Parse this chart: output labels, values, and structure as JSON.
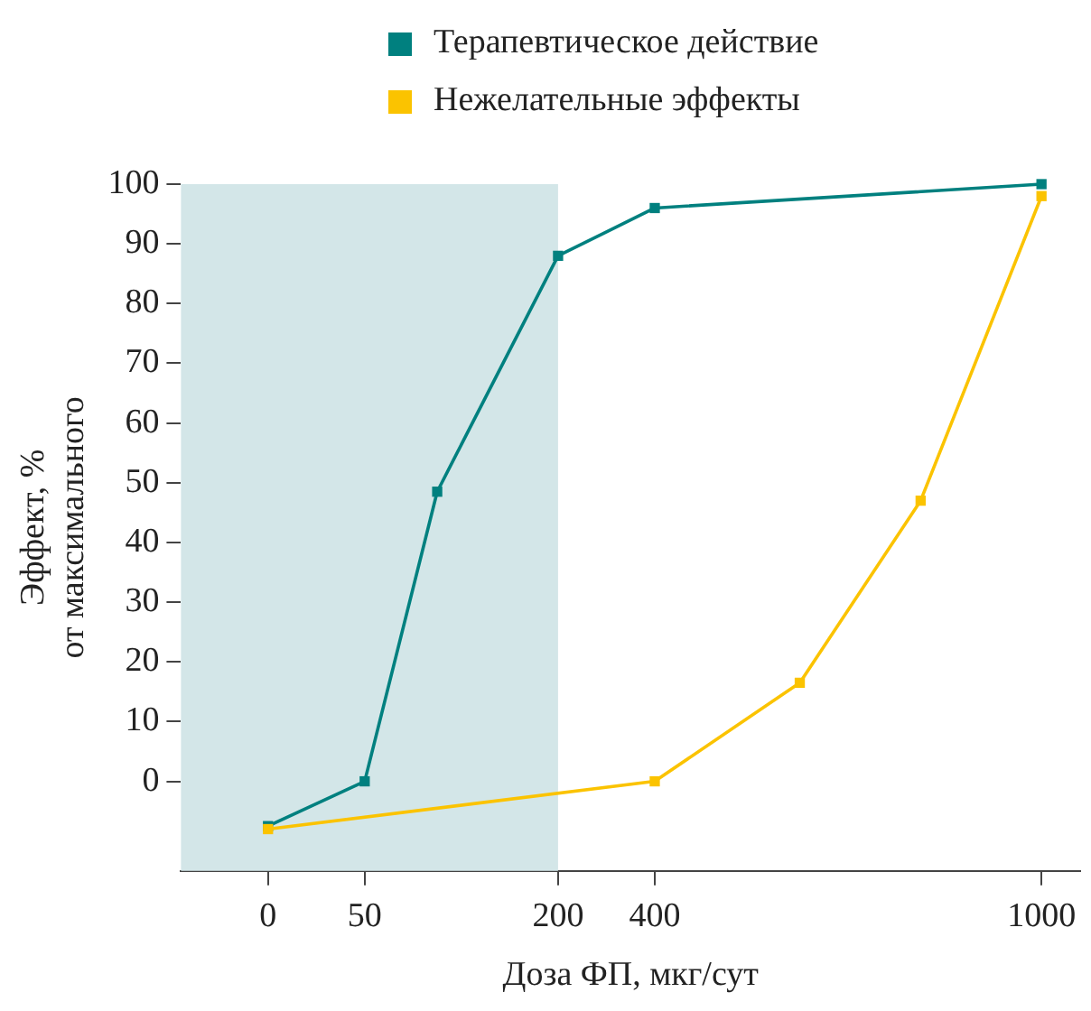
{
  "chart_data": {
    "type": "line",
    "xlabel": "Доза ФП, мкг/сут",
    "ylabel": "Эффект, %\nот максимального",
    "categories": [
      "0",
      null,
      null,
      null,
      "50",
      null,
      null,
      null,
      null,
      null,
      null,
      null,
      "200",
      null,
      null,
      null,
      "400",
      null,
      null,
      null,
      null,
      null,
      null,
      null,
      null,
      null,
      null,
      null,
      null,
      null,
      null,
      null,
      "1000"
    ],
    "ylim": [
      -15,
      100
    ],
    "yticks": [
      0,
      10,
      20,
      30,
      40,
      50,
      60,
      70,
      80,
      90,
      100
    ],
    "series": [
      {
        "name": "Терапевтическое действие",
        "color": "#00807f",
        "values": [
          -7.5,
          null,
          null,
          null,
          0,
          null,
          null,
          48.5,
          null,
          null,
          null,
          null,
          88,
          null,
          null,
          null,
          96,
          null,
          null,
          null,
          null,
          null,
          null,
          null,
          null,
          null,
          null,
          null,
          null,
          null,
          null,
          null,
          100
        ]
      },
      {
        "name": "Нежелательные эффекты",
        "color": "#fbc300",
        "values": [
          -8,
          null,
          null,
          null,
          null,
          null,
          null,
          null,
          null,
          null,
          null,
          null,
          null,
          null,
          null,
          null,
          0,
          null,
          null,
          null,
          null,
          null,
          16.5,
          null,
          null,
          null,
          null,
          47,
          null,
          null,
          null,
          null,
          98
        ]
      }
    ],
    "bands": [
      {
        "axis": "x",
        "from": "0",
        "to": "200",
        "color": "#d3e6e8"
      }
    ],
    "marker": "square",
    "line_style": "solid",
    "grid": false,
    "legend": "top"
  }
}
